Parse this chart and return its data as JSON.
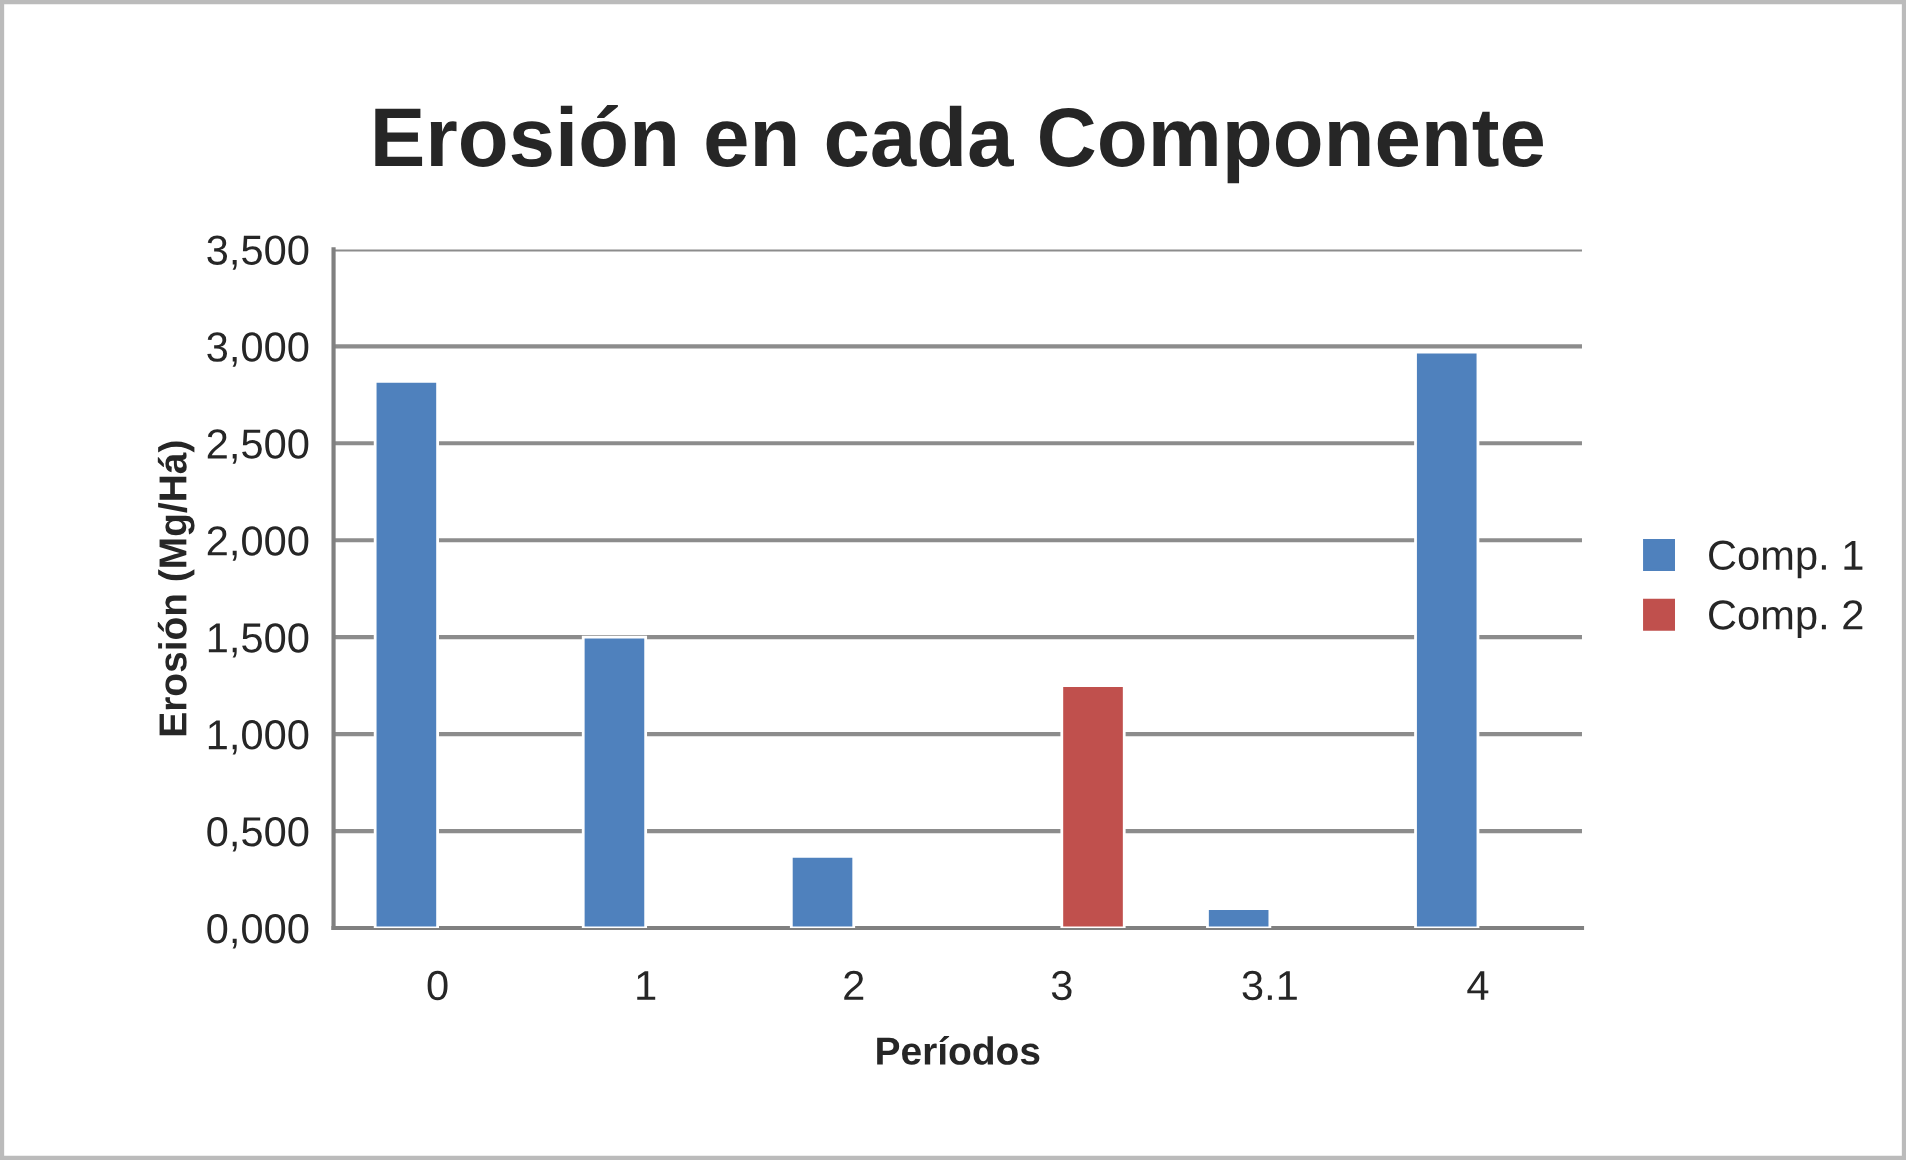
{
  "chart_data": {
    "type": "bar",
    "title": "Erosión en cada Componente",
    "xlabel": "Períodos",
    "ylabel": "Erosión (Mg/Há)",
    "categories": [
      "0",
      "1",
      "2",
      "3",
      "3.1",
      "4"
    ],
    "series": [
      {
        "name": "Comp. 1",
        "color": "#4f81bd",
        "values": [
          2.82,
          1.5,
          0.37,
          null,
          0.1,
          2.97
        ]
      },
      {
        "name": "Comp. 2",
        "color": "#c0504d",
        "values": [
          null,
          null,
          null,
          1.25,
          null,
          null
        ]
      }
    ],
    "ylim": [
      0,
      3.5
    ],
    "yticks": [
      {
        "value": 0,
        "label": "0,000"
      },
      {
        "value": 0.5,
        "label": "0,500"
      },
      {
        "value": 1.0,
        "label": "1,000"
      },
      {
        "value": 1.5,
        "label": "1,500"
      },
      {
        "value": 2.0,
        "label": "2,000"
      },
      {
        "value": 2.5,
        "label": "2,500"
      },
      {
        "value": 3.0,
        "label": "3,000"
      },
      {
        "value": 3.5,
        "label": "3,500"
      }
    ],
    "grid": "y",
    "legend": "right"
  }
}
